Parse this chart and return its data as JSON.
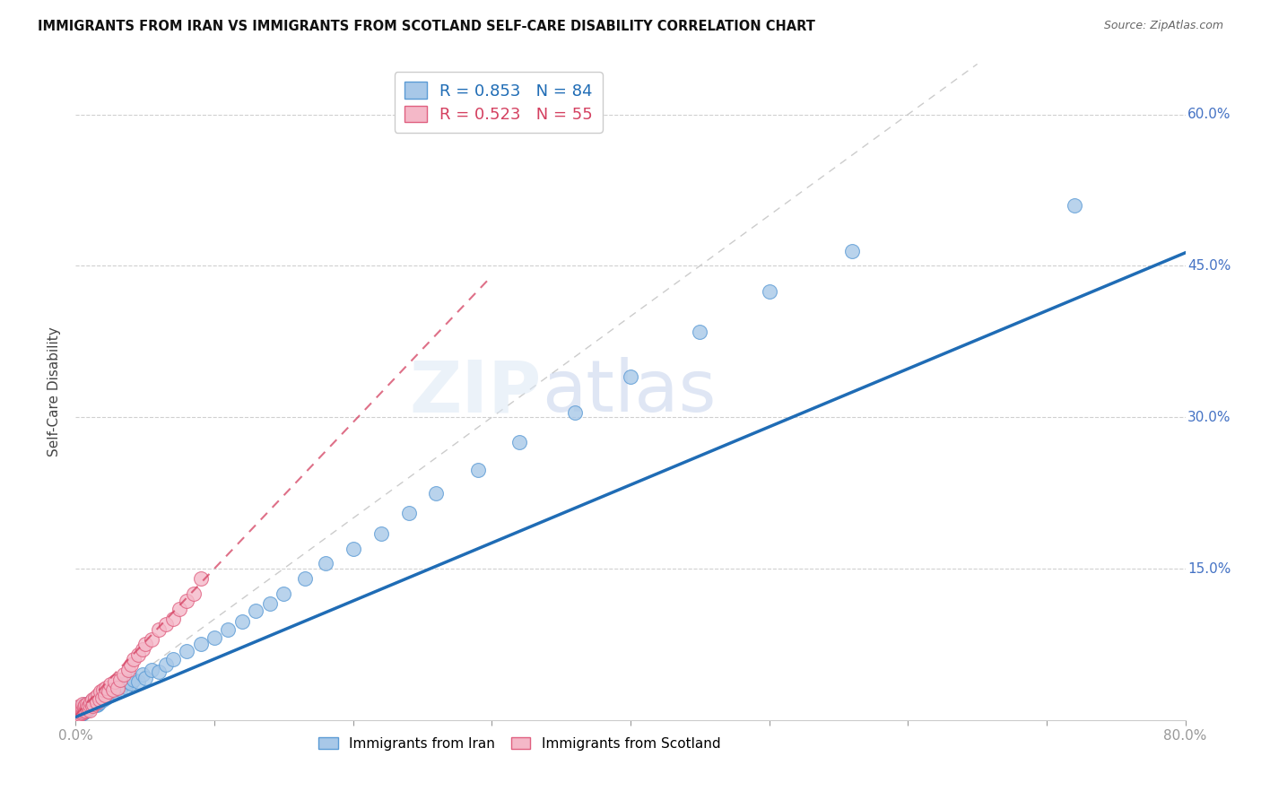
{
  "title": "IMMIGRANTS FROM IRAN VS IMMIGRANTS FROM SCOTLAND SELF-CARE DISABILITY CORRELATION CHART",
  "source": "Source: ZipAtlas.com",
  "ylabel": "Self-Care Disability",
  "xlim": [
    0,
    0.8
  ],
  "ylim": [
    0,
    0.65
  ],
  "xtick_positions": [
    0.0,
    0.1,
    0.2,
    0.3,
    0.4,
    0.5,
    0.6,
    0.7,
    0.8
  ],
  "xtick_labels_show": {
    "0.0": "0.0%",
    "0.80": "80.0%"
  },
  "ytick_positions": [
    0.15,
    0.3,
    0.45,
    0.6
  ],
  "ytick_labels": [
    "15.0%",
    "30.0%",
    "45.0%",
    "60.0%"
  ],
  "iran_color": "#a8c8e8",
  "iran_edge_color": "#5b9bd5",
  "scotland_color": "#f4b8c8",
  "scotland_edge_color": "#e06080",
  "iran_R": 0.853,
  "iran_N": 84,
  "scotland_R": 0.523,
  "scotland_N": 55,
  "iran_line_color": "#1f6cb5",
  "iran_slope": 0.575,
  "iran_intercept": 0.003,
  "scotland_line_color": "#d44060",
  "scotland_slope": 1.45,
  "scotland_intercept": 0.005,
  "diag_color": "#cccccc",
  "grid_color": "#d0d0d0",
  "background_color": "#ffffff",
  "watermark_zip": "ZIP",
  "watermark_atlas": "atlas",
  "ytick_color": "#4472C4",
  "xtick_color": "#4472C4",
  "iran_x": [
    0.001,
    0.001,
    0.001,
    0.002,
    0.002,
    0.002,
    0.002,
    0.003,
    0.003,
    0.003,
    0.003,
    0.004,
    0.004,
    0.004,
    0.005,
    0.005,
    0.005,
    0.006,
    0.006,
    0.006,
    0.007,
    0.007,
    0.007,
    0.008,
    0.008,
    0.009,
    0.009,
    0.01,
    0.01,
    0.011,
    0.011,
    0.012,
    0.012,
    0.013,
    0.014,
    0.015,
    0.015,
    0.016,
    0.017,
    0.018,
    0.019,
    0.02,
    0.021,
    0.022,
    0.023,
    0.025,
    0.026,
    0.028,
    0.03,
    0.032,
    0.034,
    0.036,
    0.038,
    0.04,
    0.042,
    0.045,
    0.048,
    0.05,
    0.055,
    0.06,
    0.065,
    0.07,
    0.08,
    0.09,
    0.1,
    0.11,
    0.12,
    0.13,
    0.14,
    0.15,
    0.165,
    0.18,
    0.2,
    0.22,
    0.24,
    0.26,
    0.29,
    0.32,
    0.36,
    0.4,
    0.45,
    0.5,
    0.56,
    0.72
  ],
  "iran_y": [
    0.003,
    0.005,
    0.008,
    0.004,
    0.006,
    0.009,
    0.012,
    0.005,
    0.007,
    0.01,
    0.013,
    0.006,
    0.009,
    0.012,
    0.007,
    0.01,
    0.014,
    0.008,
    0.011,
    0.015,
    0.009,
    0.012,
    0.016,
    0.01,
    0.014,
    0.011,
    0.015,
    0.012,
    0.017,
    0.013,
    0.018,
    0.014,
    0.019,
    0.016,
    0.018,
    0.015,
    0.02,
    0.016,
    0.018,
    0.02,
    0.022,
    0.02,
    0.025,
    0.022,
    0.028,
    0.025,
    0.03,
    0.028,
    0.032,
    0.03,
    0.035,
    0.033,
    0.038,
    0.036,
    0.04,
    0.038,
    0.045,
    0.042,
    0.05,
    0.048,
    0.055,
    0.06,
    0.068,
    0.075,
    0.082,
    0.09,
    0.098,
    0.108,
    0.115,
    0.125,
    0.14,
    0.155,
    0.17,
    0.185,
    0.205,
    0.225,
    0.248,
    0.275,
    0.305,
    0.34,
    0.385,
    0.425,
    0.465,
    0.51
  ],
  "scotland_x": [
    0.001,
    0.001,
    0.002,
    0.002,
    0.002,
    0.003,
    0.003,
    0.004,
    0.004,
    0.005,
    0.005,
    0.005,
    0.006,
    0.006,
    0.007,
    0.007,
    0.008,
    0.008,
    0.009,
    0.01,
    0.01,
    0.011,
    0.012,
    0.012,
    0.013,
    0.014,
    0.015,
    0.016,
    0.017,
    0.018,
    0.019,
    0.02,
    0.021,
    0.022,
    0.024,
    0.025,
    0.027,
    0.028,
    0.03,
    0.032,
    0.035,
    0.038,
    0.04,
    0.042,
    0.045,
    0.048,
    0.05,
    0.055,
    0.06,
    0.065,
    0.07,
    0.075,
    0.08,
    0.085,
    0.09
  ],
  "scotland_y": [
    0.004,
    0.008,
    0.005,
    0.009,
    0.013,
    0.006,
    0.01,
    0.007,
    0.011,
    0.008,
    0.012,
    0.016,
    0.009,
    0.013,
    0.01,
    0.015,
    0.011,
    0.016,
    0.013,
    0.01,
    0.015,
    0.018,
    0.014,
    0.02,
    0.016,
    0.022,
    0.018,
    0.025,
    0.02,
    0.028,
    0.022,
    0.03,
    0.025,
    0.032,
    0.028,
    0.035,
    0.03,
    0.038,
    0.032,
    0.04,
    0.045,
    0.05,
    0.055,
    0.06,
    0.065,
    0.07,
    0.075,
    0.08,
    0.09,
    0.095,
    0.1,
    0.11,
    0.118,
    0.125,
    0.14
  ]
}
